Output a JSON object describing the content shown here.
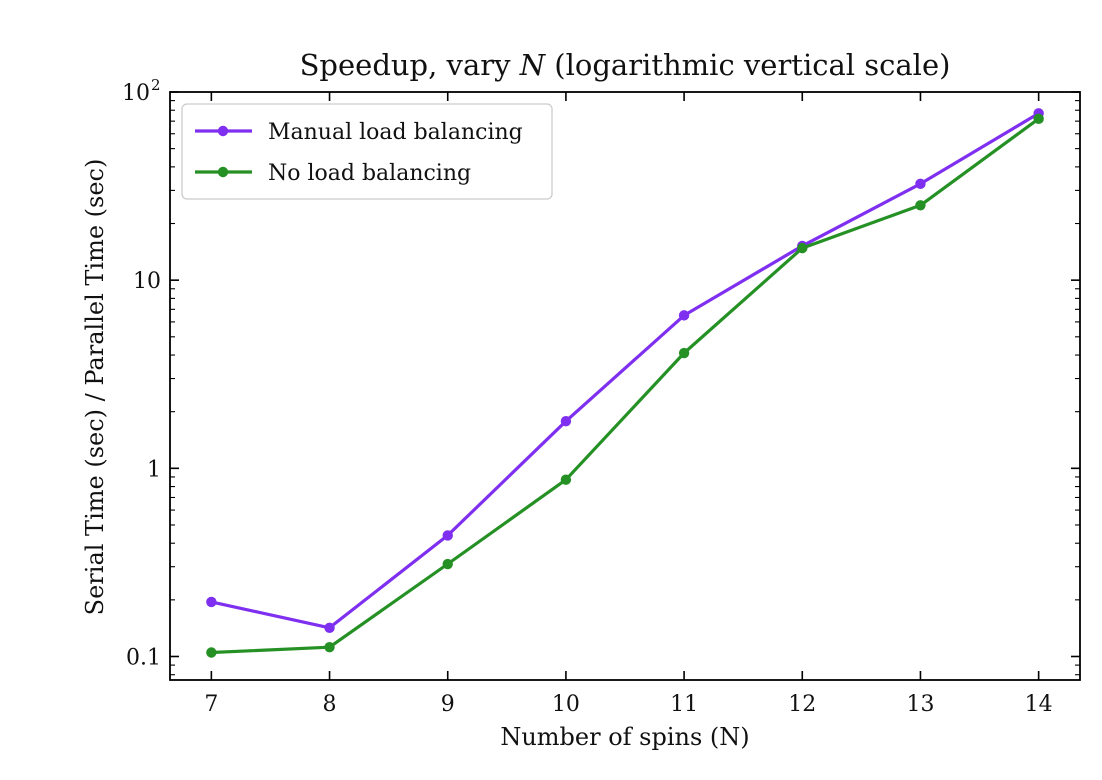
{
  "chart_data": {
    "type": "line",
    "title": {
      "prefix": "Speedup, vary ",
      "var": "N",
      "suffix": " (logarithmic vertical scale)"
    },
    "xlabel": "Number of spins (N)",
    "ylabel": "Serial Time (sec) / Parallel Time (sec)",
    "xlim": [
      6.65,
      14.35
    ],
    "ylim": [
      0.075,
      100
    ],
    "y_scale": "log",
    "x_ticks": [
      {
        "value": 7,
        "label": "7"
      },
      {
        "value": 8,
        "label": "8"
      },
      {
        "value": 9,
        "label": "9"
      },
      {
        "value": 10,
        "label": "10"
      },
      {
        "value": 11,
        "label": "11"
      },
      {
        "value": 12,
        "label": "12"
      },
      {
        "value": 13,
        "label": "13"
      },
      {
        "value": 14,
        "label": "14"
      }
    ],
    "y_ticks": [
      {
        "value": 0.1,
        "label": "0.1"
      },
      {
        "value": 1,
        "label": "1"
      },
      {
        "value": 10,
        "label": "10"
      },
      {
        "value": 100,
        "label": "10",
        "sup": "2"
      }
    ],
    "legend_position": "top-left",
    "grid": false,
    "series": [
      {
        "name": "Manual load balancing",
        "color": "#7f2ff0",
        "x": [
          7,
          8,
          9,
          10,
          11,
          12,
          13,
          14
        ],
        "y": [
          0.195,
          0.142,
          0.44,
          1.78,
          6.5,
          15.2,
          32.5,
          77
        ]
      },
      {
        "name": "No load balancing",
        "color": "#259125",
        "x": [
          7,
          8,
          9,
          10,
          11,
          12,
          13,
          14
        ],
        "y": [
          0.105,
          0.112,
          0.31,
          0.87,
          4.1,
          14.8,
          25,
          72
        ]
      }
    ]
  }
}
